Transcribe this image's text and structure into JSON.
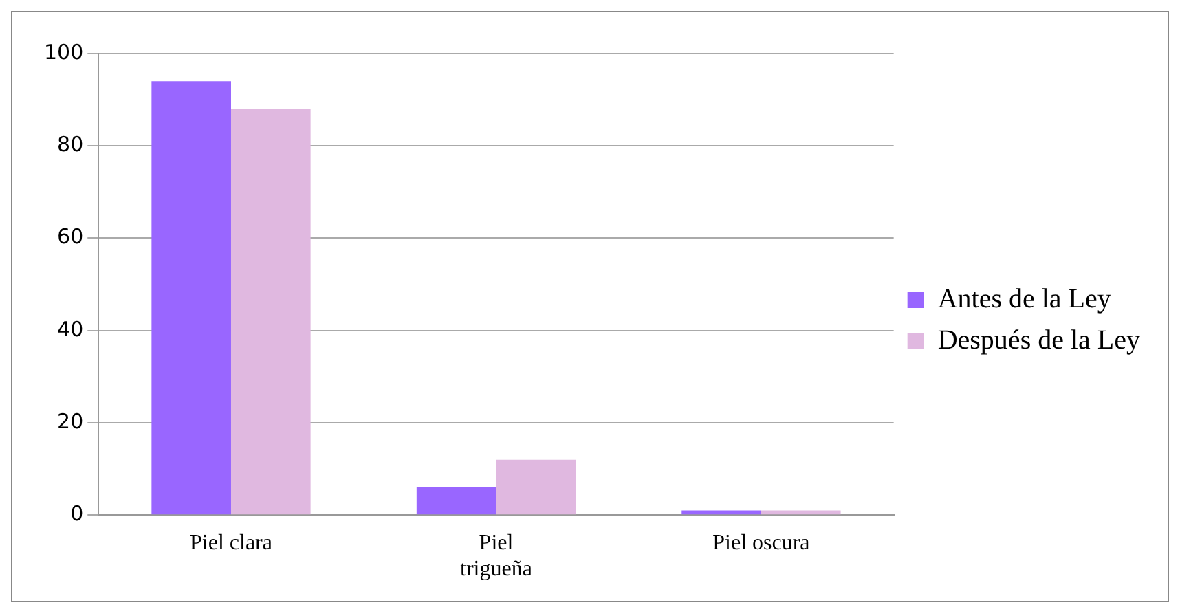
{
  "chart_data": {
    "type": "bar",
    "categories": [
      "Piel clara",
      "Piel trigueña",
      "Piel oscura"
    ],
    "series": [
      {
        "name": "Antes de la Ley",
        "color": "#9966ff",
        "values": [
          94,
          6,
          1
        ]
      },
      {
        "name": "Después de la Ley",
        "color": "#e0b8e0",
        "values": [
          88,
          12,
          1
        ]
      }
    ],
    "ylim": [
      0,
      100
    ],
    "yticks": [
      0,
      20,
      40,
      60,
      80,
      100
    ],
    "grid": "y",
    "legend": "right"
  }
}
